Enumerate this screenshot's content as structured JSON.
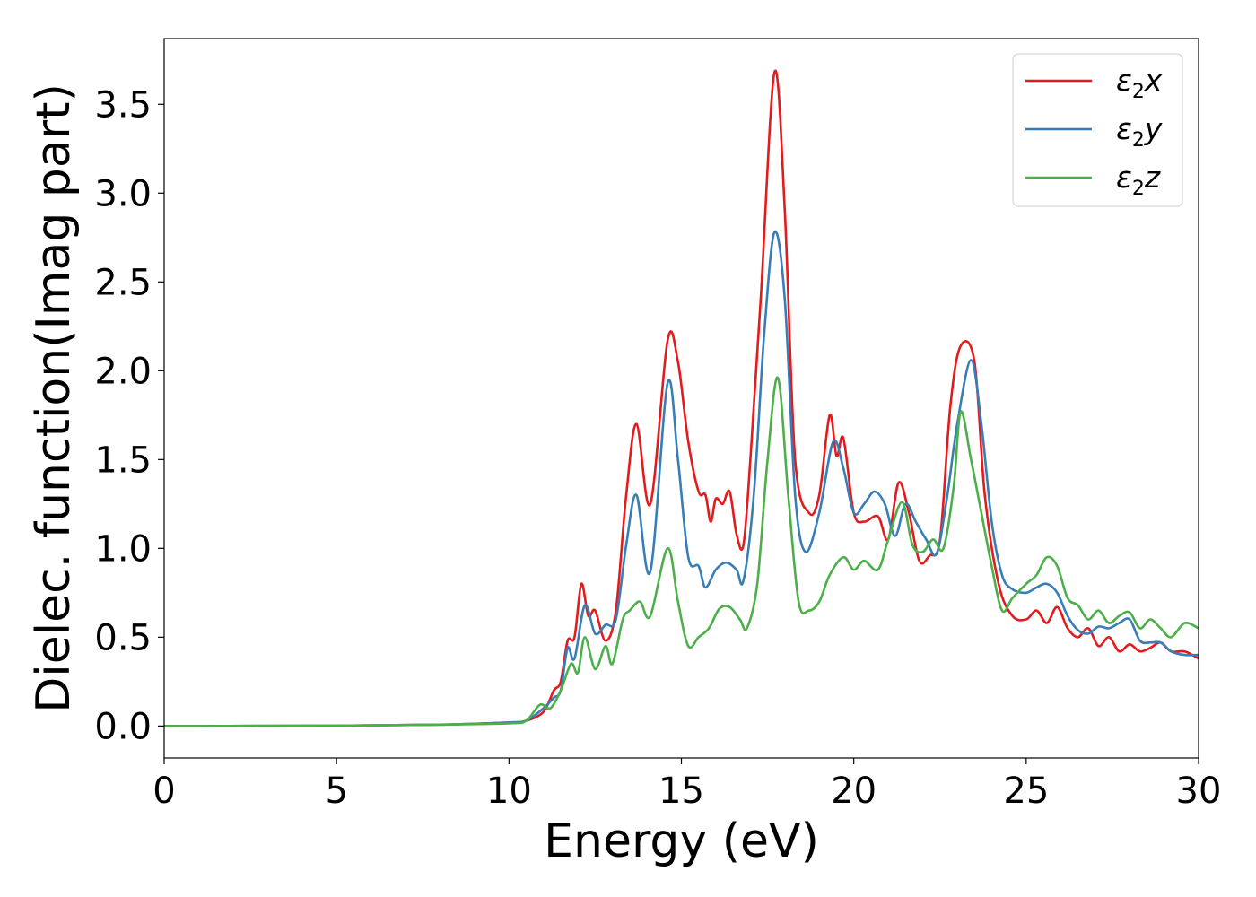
{
  "chart_data": {
    "type": "line",
    "xlabel": "Energy (eV)",
    "ylabel": "Dielec. function(Imag part)",
    "xlim": [
      0,
      30
    ],
    "ylim": [
      -0.18,
      3.87
    ],
    "xticks": [
      "0",
      "5",
      "10",
      "15",
      "20",
      "25",
      "30"
    ],
    "yticks": [
      "0.0",
      "0.5",
      "1.0",
      "1.5",
      "2.0",
      "2.5",
      "3.0",
      "3.5"
    ],
    "grid": false,
    "legend_position": "top-right",
    "series": [
      {
        "name": "ε2x",
        "name_base": "ε",
        "name_sub": "2",
        "name_suffix": "x",
        "color": "#e41a1c",
        "points": [
          [
            0,
            0
          ],
          [
            5,
            0.002
          ],
          [
            8,
            0.008
          ],
          [
            10,
            0.02
          ],
          [
            10.5,
            0.03
          ],
          [
            11,
            0.08
          ],
          [
            11.3,
            0.2
          ],
          [
            11.5,
            0.25
          ],
          [
            11.7,
            0.48
          ],
          [
            11.9,
            0.5
          ],
          [
            12.1,
            0.8
          ],
          [
            12.3,
            0.62
          ],
          [
            12.5,
            0.65
          ],
          [
            12.8,
            0.48
          ],
          [
            13.1,
            0.65
          ],
          [
            13.4,
            1.3
          ],
          [
            13.7,
            1.7
          ],
          [
            14.1,
            1.25
          ],
          [
            14.6,
            2.17
          ],
          [
            14.9,
            2.05
          ],
          [
            15.2,
            1.6
          ],
          [
            15.5,
            1.32
          ],
          [
            15.7,
            1.3
          ],
          [
            15.85,
            1.15
          ],
          [
            16.0,
            1.28
          ],
          [
            16.2,
            1.25
          ],
          [
            16.4,
            1.32
          ],
          [
            16.6,
            1.08
          ],
          [
            16.8,
            1.02
          ],
          [
            17.0,
            1.5
          ],
          [
            17.3,
            2.4
          ],
          [
            17.7,
            3.68
          ],
          [
            18.0,
            2.9
          ],
          [
            18.3,
            1.5
          ],
          [
            18.7,
            1.2
          ],
          [
            19.0,
            1.3
          ],
          [
            19.3,
            1.75
          ],
          [
            19.5,
            1.52
          ],
          [
            19.7,
            1.62
          ],
          [
            20.0,
            1.2
          ],
          [
            20.3,
            1.15
          ],
          [
            20.7,
            1.18
          ],
          [
            21.0,
            1.05
          ],
          [
            21.3,
            1.37
          ],
          [
            21.6,
            1.2
          ],
          [
            21.9,
            0.93
          ],
          [
            22.2,
            0.96
          ],
          [
            22.5,
            1.05
          ],
          [
            22.8,
            1.8
          ],
          [
            23.1,
            2.14
          ],
          [
            23.5,
            2.05
          ],
          [
            23.8,
            1.3
          ],
          [
            24.2,
            0.8
          ],
          [
            24.6,
            0.62
          ],
          [
            25.0,
            0.6
          ],
          [
            25.3,
            0.65
          ],
          [
            25.6,
            0.58
          ],
          [
            25.9,
            0.67
          ],
          [
            26.2,
            0.55
          ],
          [
            26.5,
            0.5
          ],
          [
            26.8,
            0.55
          ],
          [
            27.1,
            0.45
          ],
          [
            27.4,
            0.5
          ],
          [
            27.7,
            0.42
          ],
          [
            28.0,
            0.46
          ],
          [
            28.3,
            0.42
          ],
          [
            28.6,
            0.44
          ],
          [
            28.9,
            0.47
          ],
          [
            29.2,
            0.42
          ],
          [
            29.6,
            0.42
          ],
          [
            30,
            0.38
          ]
        ]
      },
      {
        "name": "ε2y",
        "name_base": "ε",
        "name_sub": "2",
        "name_suffix": "y",
        "color": "#377eb8",
        "points": [
          [
            0,
            0
          ],
          [
            5,
            0.002
          ],
          [
            8,
            0.008
          ],
          [
            10,
            0.02
          ],
          [
            10.5,
            0.03
          ],
          [
            11,
            0.1
          ],
          [
            11.3,
            0.16
          ],
          [
            11.5,
            0.2
          ],
          [
            11.7,
            0.44
          ],
          [
            11.9,
            0.38
          ],
          [
            12.2,
            0.68
          ],
          [
            12.5,
            0.52
          ],
          [
            12.8,
            0.57
          ],
          [
            13.1,
            0.6
          ],
          [
            13.4,
            1.02
          ],
          [
            13.7,
            1.3
          ],
          [
            14.1,
            0.87
          ],
          [
            14.6,
            1.93
          ],
          [
            14.9,
            1.5
          ],
          [
            15.2,
            0.95
          ],
          [
            15.5,
            0.9
          ],
          [
            15.7,
            0.78
          ],
          [
            16.0,
            0.88
          ],
          [
            16.3,
            0.92
          ],
          [
            16.6,
            0.88
          ],
          [
            16.8,
            0.82
          ],
          [
            17.1,
            1.3
          ],
          [
            17.4,
            2.2
          ],
          [
            17.7,
            2.78
          ],
          [
            18.0,
            2.4
          ],
          [
            18.3,
            1.3
          ],
          [
            18.6,
            0.98
          ],
          [
            19.0,
            1.2
          ],
          [
            19.4,
            1.6
          ],
          [
            19.7,
            1.45
          ],
          [
            20.0,
            1.2
          ],
          [
            20.3,
            1.25
          ],
          [
            20.6,
            1.32
          ],
          [
            20.9,
            1.25
          ],
          [
            21.2,
            1.07
          ],
          [
            21.5,
            1.25
          ],
          [
            21.8,
            1.15
          ],
          [
            22.1,
            1.05
          ],
          [
            22.4,
            0.97
          ],
          [
            22.7,
            1.28
          ],
          [
            23.0,
            1.7
          ],
          [
            23.4,
            2.06
          ],
          [
            23.7,
            1.7
          ],
          [
            24.0,
            1.15
          ],
          [
            24.3,
            0.85
          ],
          [
            24.6,
            0.77
          ],
          [
            25.0,
            0.75
          ],
          [
            25.3,
            0.78
          ],
          [
            25.6,
            0.8
          ],
          [
            25.9,
            0.75
          ],
          [
            26.2,
            0.62
          ],
          [
            26.5,
            0.54
          ],
          [
            26.8,
            0.52
          ],
          [
            27.1,
            0.56
          ],
          [
            27.4,
            0.55
          ],
          [
            27.7,
            0.58
          ],
          [
            28.0,
            0.6
          ],
          [
            28.3,
            0.48
          ],
          [
            28.6,
            0.47
          ],
          [
            28.9,
            0.47
          ],
          [
            29.2,
            0.42
          ],
          [
            29.6,
            0.4
          ],
          [
            30,
            0.4
          ]
        ]
      },
      {
        "name": "ε2z",
        "name_base": "ε",
        "name_sub": "2",
        "name_suffix": "z",
        "color": "#4daf4a",
        "points": [
          [
            0,
            0
          ],
          [
            5,
            0.002
          ],
          [
            8,
            0.008
          ],
          [
            10,
            0.015
          ],
          [
            10.5,
            0.03
          ],
          [
            10.9,
            0.12
          ],
          [
            11.2,
            0.1
          ],
          [
            11.5,
            0.2
          ],
          [
            11.8,
            0.35
          ],
          [
            12.0,
            0.3
          ],
          [
            12.2,
            0.5
          ],
          [
            12.5,
            0.32
          ],
          [
            12.8,
            0.45
          ],
          [
            13.0,
            0.35
          ],
          [
            13.3,
            0.6
          ],
          [
            13.5,
            0.65
          ],
          [
            13.8,
            0.7
          ],
          [
            14.1,
            0.62
          ],
          [
            14.6,
            1.0
          ],
          [
            14.9,
            0.7
          ],
          [
            15.2,
            0.45
          ],
          [
            15.5,
            0.5
          ],
          [
            15.8,
            0.55
          ],
          [
            16.1,
            0.66
          ],
          [
            16.4,
            0.67
          ],
          [
            16.7,
            0.6
          ],
          [
            16.9,
            0.55
          ],
          [
            17.2,
            0.8
          ],
          [
            17.5,
            1.5
          ],
          [
            17.8,
            1.96
          ],
          [
            18.1,
            1.3
          ],
          [
            18.4,
            0.7
          ],
          [
            18.7,
            0.65
          ],
          [
            19.0,
            0.7
          ],
          [
            19.3,
            0.85
          ],
          [
            19.7,
            0.95
          ],
          [
            20.0,
            0.88
          ],
          [
            20.3,
            0.93
          ],
          [
            20.7,
            0.88
          ],
          [
            21.0,
            1.05
          ],
          [
            21.4,
            1.26
          ],
          [
            21.7,
            1.02
          ],
          [
            22.0,
            0.98
          ],
          [
            22.3,
            1.05
          ],
          [
            22.6,
            1.0
          ],
          [
            22.9,
            1.35
          ],
          [
            23.1,
            1.77
          ],
          [
            23.4,
            1.5
          ],
          [
            23.7,
            1.2
          ],
          [
            24.0,
            0.9
          ],
          [
            24.3,
            0.65
          ],
          [
            24.6,
            0.72
          ],
          [
            25.0,
            0.8
          ],
          [
            25.3,
            0.85
          ],
          [
            25.6,
            0.95
          ],
          [
            25.9,
            0.9
          ],
          [
            26.2,
            0.72
          ],
          [
            26.5,
            0.68
          ],
          [
            26.8,
            0.6
          ],
          [
            27.1,
            0.65
          ],
          [
            27.4,
            0.58
          ],
          [
            27.7,
            0.62
          ],
          [
            28.0,
            0.64
          ],
          [
            28.3,
            0.55
          ],
          [
            28.6,
            0.6
          ],
          [
            28.9,
            0.55
          ],
          [
            29.2,
            0.5
          ],
          [
            29.6,
            0.58
          ],
          [
            30,
            0.55
          ]
        ]
      }
    ]
  }
}
